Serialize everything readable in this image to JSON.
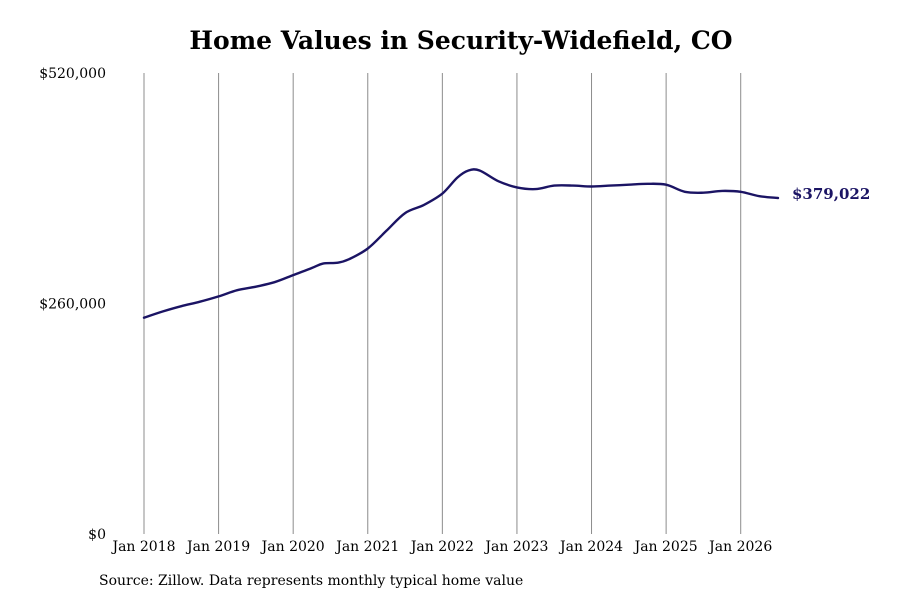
{
  "chart_data": {
    "type": "line",
    "title": "Home Values in Security-Widefield, CO",
    "xlabel": "",
    "ylabel": "",
    "ylim": [
      0,
      520000
    ],
    "y_ticks": [
      "$0",
      "$260,000",
      "$520,000"
    ],
    "y_tick_values": [
      0,
      260000,
      520000
    ],
    "x_ticks": [
      "Jan 2018",
      "Jan 2019",
      "Jan 2020",
      "Jan 2021",
      "Jan 2022",
      "Jan 2023",
      "Jan 2024",
      "Jan 2025",
      "Jan 2026"
    ],
    "x_tick_values": [
      2018,
      2019,
      2020,
      2021,
      2022,
      2023,
      2024,
      2025,
      2026
    ],
    "xlim": [
      2018,
      2026.5
    ],
    "grid": "vertical",
    "line_color": "#1b1464",
    "series": [
      {
        "x": [
          2018.0,
          2018.25,
          2018.5,
          2018.75,
          2019.0,
          2019.25,
          2019.5,
          2019.75,
          2020.0,
          2020.25,
          2020.4,
          2020.6,
          2020.75,
          2021.0,
          2021.25,
          2021.5,
          2021.75,
          2022.0,
          2022.2,
          2022.35,
          2022.5,
          2022.75,
          2023.0,
          2023.25,
          2023.5,
          2023.75,
          2024.0,
          2024.25,
          2024.5,
          2024.75,
          2025.0,
          2025.25,
          2025.5,
          2025.75,
          2026.0,
          2026.25,
          2026.5
        ],
        "values": [
          244000,
          251000,
          257000,
          262000,
          268000,
          275000,
          279000,
          284000,
          292000,
          300000,
          305000,
          306000,
          310000,
          322000,
          342000,
          362000,
          371000,
          384000,
          402000,
          410000,
          410000,
          398000,
          391000,
          389000,
          393000,
          393000,
          392000,
          393000,
          394000,
          395000,
          394000,
          386000,
          385000,
          387000,
          386000,
          381000,
          379022
        ]
      }
    ],
    "end_label": "$379,022"
  },
  "source": "Source: Zillow. Data represents monthly typical home value"
}
